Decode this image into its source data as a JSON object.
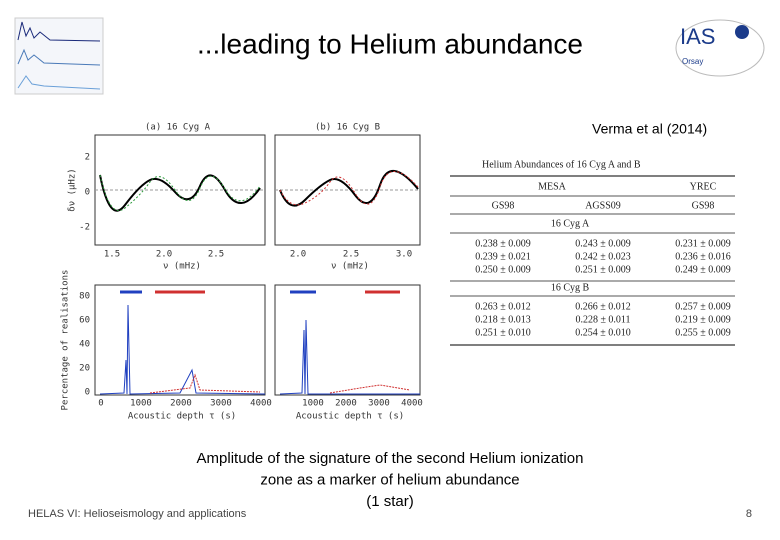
{
  "header": {
    "title": "...leading to Helium abundance",
    "logo": {
      "text": "IAS",
      "subtext": "Orsay"
    }
  },
  "citation": "Verma et al (2014)",
  "figure": {
    "panels": [
      {
        "label": "(a) 16 Cyg A"
      },
      {
        "label": "(b) 16 Cyg B"
      }
    ],
    "top_y_label": "δν (μHz)",
    "top_y_ticks": [
      "2",
      "0",
      "-2"
    ],
    "top_x_ticks_a": [
      "1.5",
      "2.0",
      "2.5"
    ],
    "top_x_ticks_b": [
      "2.0",
      "2.5",
      "3.0"
    ],
    "top_x_label": "ν (mHz)",
    "bottom_y_label": "Percentage of realisations",
    "bottom_y_ticks": [
      "80",
      "60",
      "40",
      "20",
      "0"
    ],
    "bottom_x_ticks_a": [
      "0",
      "1000",
      "2000",
      "3000",
      "4000"
    ],
    "bottom_x_ticks_b": [
      "1000",
      "2000",
      "3000",
      "4000"
    ],
    "bottom_x_label": "Acoustic depth τ (s)"
  },
  "table": {
    "title": "Helium Abundances of 16 Cyg A and B",
    "groups": [
      "MESA",
      "YREC"
    ],
    "columns": [
      "GS98",
      "AGSS09",
      "GS98"
    ],
    "sections": [
      {
        "name": "16 Cyg A",
        "rows": [
          [
            "0.238 ± 0.009",
            "0.243 ± 0.009",
            "0.231 ± 0.009"
          ],
          [
            "0.239 ± 0.021",
            "0.242 ± 0.023",
            "0.236 ± 0.016"
          ],
          [
            "0.250 ± 0.009",
            "0.251 ± 0.009",
            "0.249 ± 0.009"
          ]
        ]
      },
      {
        "name": "16 Cyg B",
        "rows": [
          [
            "0.263 ± 0.012",
            "0.266 ± 0.012",
            "0.257 ± 0.009"
          ],
          [
            "0.218 ± 0.013",
            "0.228 ± 0.011",
            "0.219 ± 0.009"
          ],
          [
            "0.251 ± 0.010",
            "0.254 ± 0.010",
            "0.255 ± 0.009"
          ]
        ]
      }
    ]
  },
  "caption": [
    "Amplitude of the signature of the second Helium ionization",
    "zone as a marker of helium abundance",
    "(1 star)"
  ],
  "footer": "HELAS VI: Helioseismology and applications",
  "page_number": "8"
}
